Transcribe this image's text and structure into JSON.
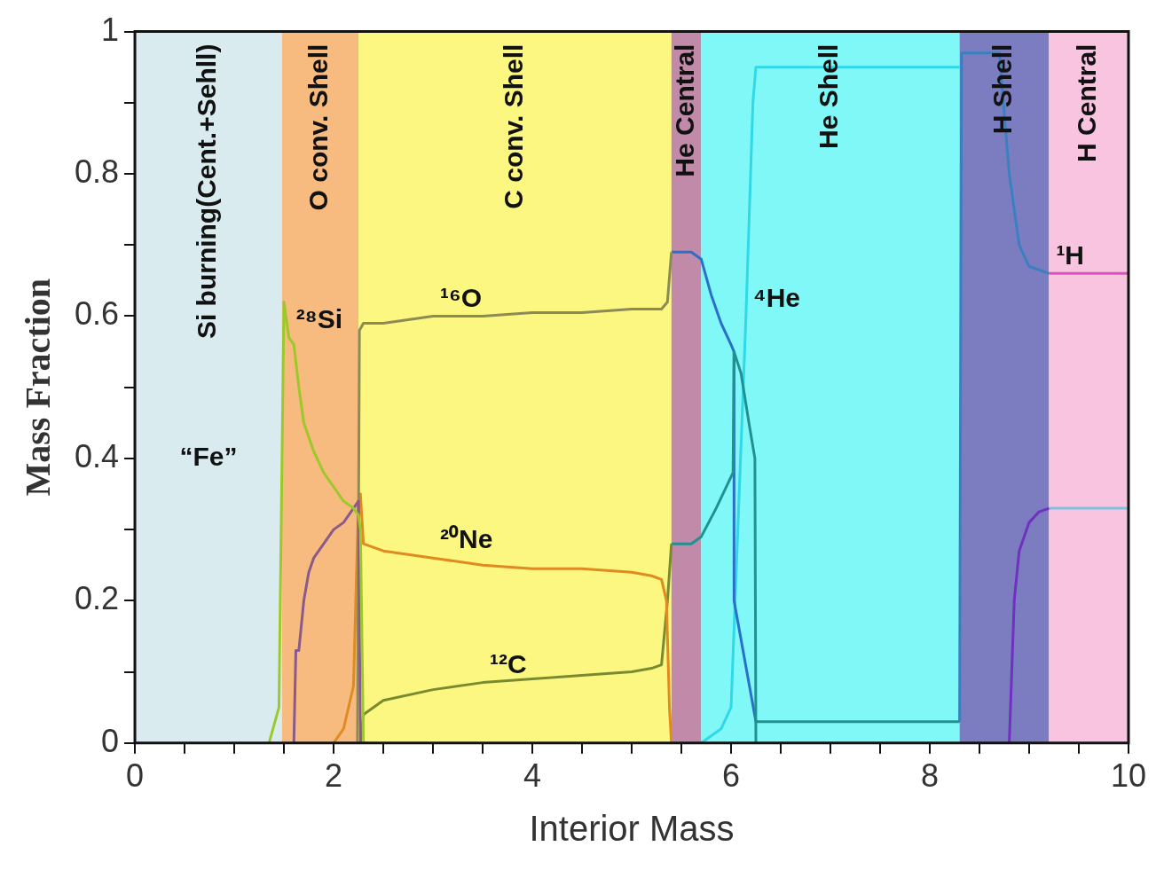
{
  "chart_data": {
    "type": "line",
    "xlabel": "Interior Mass",
    "ylabel": "Mass Fraction",
    "xlim": [
      0,
      10
    ],
    "ylim": [
      0,
      1
    ],
    "xticks": [
      0,
      {
        "value": 0.5,
        "label": null
      },
      2,
      {
        "value": 1,
        "label": null
      },
      {
        "value": 1.5,
        "label": null
      },
      {
        "value": 2.5,
        "label": null
      },
      {
        "value": 3,
        "label": null
      },
      {
        "value": 3.5,
        "label": null
      },
      4,
      {
        "value": 4.5,
        "label": null
      },
      {
        "value": 5,
        "label": null
      },
      {
        "value": 5.5,
        "label": null
      },
      6,
      {
        "value": 6.5,
        "label": null
      },
      {
        "value": 7,
        "label": null
      },
      {
        "value": 7.5,
        "label": null
      },
      8,
      {
        "value": 8.5,
        "label": null
      },
      {
        "value": 9,
        "label": null
      },
      {
        "value": 9.5,
        "label": null
      },
      10
    ],
    "yticks": [
      0,
      {
        "value": 0.1,
        "label": null
      },
      0.2,
      {
        "value": 0.3,
        "label": null
      },
      0.4,
      {
        "value": 0.5,
        "label": null
      },
      0.6,
      {
        "value": 0.7,
        "label": null
      },
      0.8,
      {
        "value": 0.9,
        "label": null
      },
      1
    ],
    "grid": false,
    "legend": false,
    "marker": "none",
    "line_style": "solid",
    "bands": [
      {
        "axis": "x",
        "from": 0,
        "to": 1.48,
        "label": "Si burning(Cent.+Sehll)",
        "color": "#d9ebef"
      },
      {
        "axis": "x",
        "from": 1.48,
        "to": 2.25,
        "label": "O conv. Shell",
        "color": "#f7bb80"
      },
      {
        "axis": "x",
        "from": 2.25,
        "to": 5.4,
        "label": "C conv. Shell",
        "color": "#fbf780"
      },
      {
        "axis": "x",
        "from": 5.4,
        "to": 5.7,
        "label": "He Central",
        "color": "#c08aa8"
      },
      {
        "axis": "x",
        "from": 5.7,
        "to": 8.3,
        "label": "He Shell",
        "color": "#80f8f8"
      },
      {
        "axis": "x",
        "from": 8.3,
        "to": 9.2,
        "label": "H Shell",
        "color": "#7c7cc0"
      },
      {
        "axis": "x",
        "from": 9.2,
        "to": 10,
        "label": "H Central",
        "color": "#f8c4e0"
      }
    ],
    "series": [
      {
        "color": "#9dc82a",
        "x": [
          1.35,
          1.45,
          1.5,
          1.55,
          1.6,
          1.65,
          1.7,
          1.8,
          1.9,
          2.0,
          2.1,
          2.2,
          2.25,
          2.27,
          2.3,
          2.35
        ],
        "values": [
          0,
          0.05,
          0.62,
          0.57,
          0.56,
          0.5,
          0.45,
          0.41,
          0.38,
          0.36,
          0.34,
          0.33,
          0.32,
          0.3,
          0,
          0
        ]
      },
      {
        "color": "#8a5a8a",
        "x": [
          1.6,
          1.62,
          1.65,
          1.7,
          1.75,
          1.8,
          1.9,
          2.0,
          2.1,
          2.2,
          2.25,
          2.27
        ],
        "values": [
          0,
          0.13,
          0.13,
          0.2,
          0.24,
          0.26,
          0.28,
          0.3,
          0.31,
          0.33,
          0.34,
          0
        ]
      },
      {
        "color": "#8b8b55",
        "x": [
          2.24,
          2.26,
          2.3,
          2.5,
          3,
          3.5,
          4,
          4.5,
          5,
          5.3,
          5.36,
          5.4
        ],
        "values": [
          0,
          0.58,
          0.59,
          0.59,
          0.6,
          0.6,
          0.605,
          0.605,
          0.61,
          0.61,
          0.62,
          0.69
        ]
      },
      {
        "color": "#e08a20",
        "x": [
          2.0,
          2.1,
          2.2,
          2.25,
          2.27,
          2.3,
          2.5,
          3,
          3.5,
          4,
          4.5,
          5,
          5.2,
          5.3,
          5.35,
          5.38,
          5.4
        ],
        "values": [
          0,
          0.02,
          0.08,
          0.34,
          0.35,
          0.28,
          0.27,
          0.26,
          0.25,
          0.245,
          0.245,
          0.24,
          0.235,
          0.23,
          0.2,
          0.05,
          0
        ]
      },
      {
        "color": "#7a8a30",
        "x": [
          2.27,
          2.3,
          2.5,
          3,
          3.5,
          4,
          4.5,
          5,
          5.2,
          5.3,
          5.36,
          5.4
        ],
        "values": [
          0,
          0.04,
          0.06,
          0.075,
          0.085,
          0.09,
          0.095,
          0.1,
          0.105,
          0.11,
          0.2,
          0.28
        ]
      },
      {
        "color": "#209090",
        "x": [
          5.4,
          5.6,
          5.7,
          5.85,
          6.02,
          6.03,
          6.1,
          6.18,
          6.24,
          6.25
        ],
        "values": [
          0.28,
          0.28,
          0.29,
          0.33,
          0.38,
          0.55,
          0.52,
          0.45,
          0.4,
          0
        ]
      },
      {
        "color": "#2a70c8",
        "x": [
          5.4,
          5.6,
          5.7,
          5.8,
          5.9,
          6.0,
          6.03,
          6.03,
          6.25
        ],
        "values": [
          0.69,
          0.69,
          0.68,
          0.63,
          0.59,
          0.56,
          0.55,
          0.2,
          0.03
        ]
      },
      {
        "color": "#209090",
        "x": [
          6.25,
          8.3
        ],
        "values": [
          0.03,
          0.03
        ]
      },
      {
        "color": "#3a80c0",
        "x": [
          8.3,
          8.32,
          8.7,
          8.8,
          8.9,
          9.0,
          9.2
        ],
        "values": [
          0.03,
          0.97,
          0.97,
          0.8,
          0.7,
          0.67,
          0.66
        ]
      },
      {
        "color": "#30d8e8",
        "x": [
          5.7,
          5.9,
          6.0,
          6.15,
          6.22,
          6.25,
          6.3,
          8.3
        ],
        "values": [
          0,
          0.02,
          0.05,
          0.6,
          0.9,
          0.95,
          0.95,
          0.95
        ]
      },
      {
        "color": "#7030c0",
        "x": [
          8.8,
          8.85,
          8.9,
          9.0,
          9.1,
          9.2
        ],
        "values": [
          0,
          0.2,
          0.27,
          0.31,
          0.325,
          0.33
        ]
      },
      {
        "color": "#80c0e0",
        "x": [
          9.2,
          10
        ],
        "values": [
          0.33,
          0.33
        ]
      },
      {
        "color": "#e050c0",
        "x": [
          9.2,
          10
        ],
        "values": [
          0.66,
          0.66
        ]
      }
    ],
    "annotations": [
      {
        "text": "²⁸Si",
        "x": 1.55,
        "y": 0.57
      },
      {
        "text": "¹⁶O",
        "x": 3,
        "y": 0.6
      },
      {
        "text": "²⁰Ne",
        "x": 3,
        "y": 0.26
      },
      {
        "text": "¹²C",
        "x": 3.5,
        "y": 0.085
      },
      {
        "text": "⁴He",
        "x": 6.15,
        "y": 0.6
      },
      {
        "text": "¹H",
        "x": 9.2,
        "y": 0.66
      },
      "“Fe”"
    ]
  }
}
